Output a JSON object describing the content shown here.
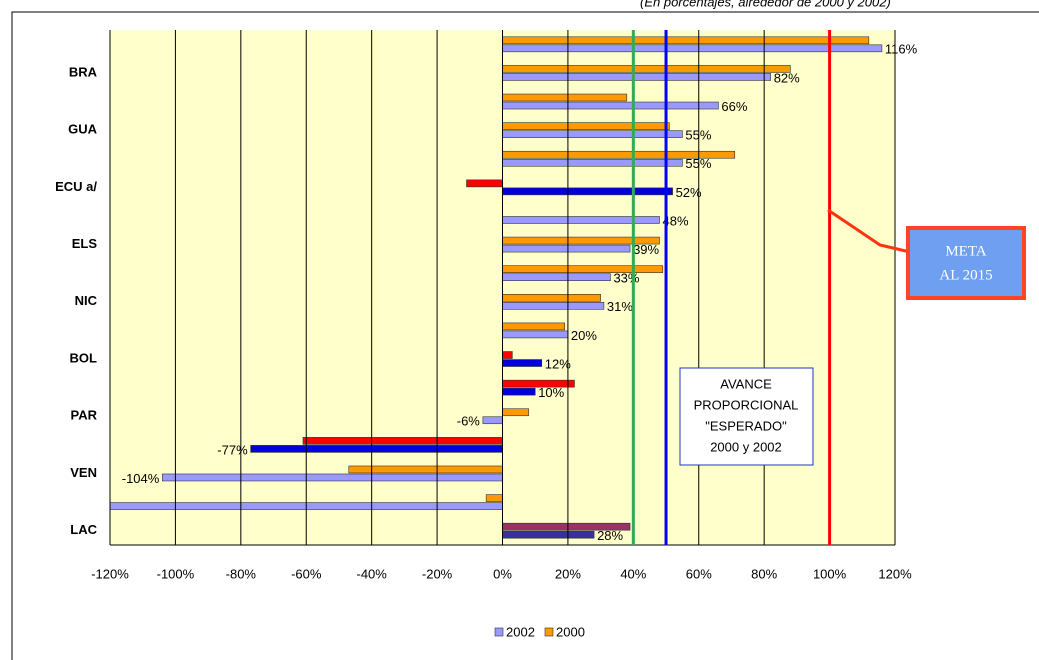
{
  "chart_data": {
    "type": "hbar",
    "subtitle": "(En porcentajes, alrededor de 2000 y 2002)",
    "categories": [
      null,
      "BRA",
      null,
      "GUA",
      null,
      "ECU a/",
      null,
      "ELS",
      null,
      "NIC",
      null,
      "BOL",
      null,
      "PAR",
      null,
      "VEN",
      null,
      "LAC"
    ],
    "series": [
      {
        "name": "2002",
        "color": "#9999ff",
        "colors": [
          "#9999ff",
          "#9999ff",
          "#9999ff",
          "#9999ff",
          "#9999ff",
          "#0000dd",
          "#9999ff",
          "#9999ff",
          "#9999ff",
          "#9999ff",
          "#9999ff",
          "#0000dd",
          "#0000dd",
          "#9999ff",
          "#0000dd",
          "#9999ff",
          "#9999ff",
          "#333399"
        ],
        "values": [
          116,
          82,
          66,
          55,
          55,
          52,
          48,
          39,
          33,
          31,
          20,
          12,
          10,
          -6,
          -77,
          -104,
          -120,
          28
        ],
        "value_labels": [
          "116%",
          "82%",
          "66%",
          "55%",
          "55%",
          "52%",
          "48%",
          "39%",
          "33%",
          "31%",
          "20%",
          "12%",
          "10%",
          "-6%",
          "-77%",
          "-104%",
          null,
          "28%"
        ]
      },
      {
        "name": "2000",
        "color": "#ff9900",
        "colors": [
          "#ff9900",
          "#ff9900",
          "#ff9900",
          "#ff9900",
          "#ff9900",
          "#ff0000",
          "#ff9900",
          "#ff9900",
          "#ff9900",
          "#ff9900",
          "#ff9900",
          "#ff0000",
          "#ff0000",
          "#ff9900",
          "#ff0000",
          "#ff9900",
          "#ff9900",
          "#993366"
        ],
        "values": [
          112,
          88,
          38,
          51,
          71,
          -11,
          null,
          48,
          49,
          30,
          19,
          3,
          22,
          8,
          -61,
          -47,
          -5,
          39
        ]
      }
    ],
    "xlim": [
      -120,
      120
    ],
    "xticks": [
      {
        "value": -120,
        "label": "-120%"
      },
      {
        "value": -100,
        "label": "-100%"
      },
      {
        "value": -80,
        "label": "-80%"
      },
      {
        "value": -60,
        "label": "-60%"
      },
      {
        "value": -40,
        "label": "-40%"
      },
      {
        "value": -20,
        "label": "-20%"
      },
      {
        "value": 0,
        "label": "0%"
      },
      {
        "value": 20,
        "label": "20%"
      },
      {
        "value": 40,
        "label": "40%"
      },
      {
        "value": 60,
        "label": "60%"
      },
      {
        "value": 80,
        "label": "80%"
      },
      {
        "value": 100,
        "label": "100%"
      },
      {
        "value": 120,
        "label": "120%"
      }
    ],
    "grid": true,
    "reference_lines": [
      {
        "value": 40,
        "color": "#33aa55"
      },
      {
        "value": 50,
        "color": "#0000ff"
      },
      {
        "value": 100,
        "color": "#ff0000"
      }
    ],
    "annotations": [
      {
        "lines": [
          "AVANCE",
          "PROPORCIONAL",
          "\"ESPERADO\"",
          "2000 y 2002"
        ]
      },
      {
        "lines": [
          "META",
          "AL 2015"
        ]
      }
    ],
    "legend": "bottom"
  }
}
